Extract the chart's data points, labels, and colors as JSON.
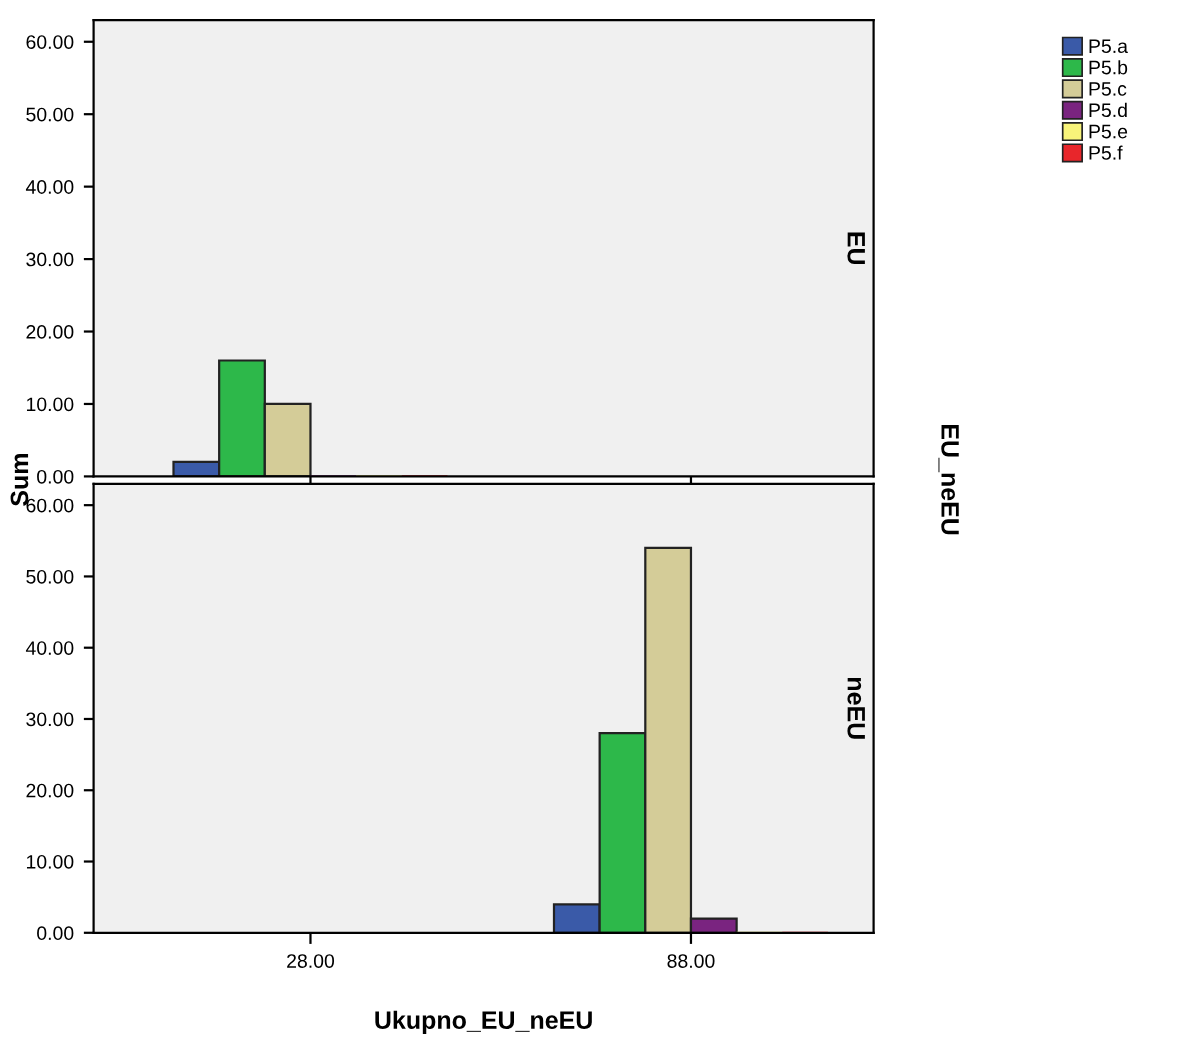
{
  "chart_data": [
    {
      "type": "bar",
      "title": "EU",
      "ylabel": "Sum",
      "annotations": [
        "EU_neEU"
      ],
      "categories": [
        "28.00",
        "88.00"
      ],
      "ylim": [
        0,
        63
      ],
      "yticks": [
        {
          "value": 0,
          "label": "0.00"
        },
        {
          "value": 10,
          "label": "10.00"
        },
        {
          "value": 20,
          "label": "20.00"
        },
        {
          "value": 30,
          "label": "30.00"
        },
        {
          "value": 40,
          "label": "40.00"
        },
        {
          "value": 50,
          "label": "50.00"
        },
        {
          "value": 60,
          "label": "60.00"
        }
      ],
      "tick_labels": "y",
      "grid": false,
      "legend": "top right",
      "series": [
        {
          "name": "P5.a",
          "color": "#3a5aa8",
          "values": [
            2,
            null
          ]
        },
        {
          "name": "P5.b",
          "color": "#2db84a",
          "values": [
            16,
            null
          ]
        },
        {
          "name": "P5.c",
          "color": "#d4cc98",
          "values": [
            10,
            null
          ]
        },
        {
          "name": "P5.d",
          "color": "#7a2480",
          "values": [
            0,
            null
          ]
        },
        {
          "name": "P5.e",
          "color": "#f8f47a",
          "values": [
            0,
            null
          ]
        },
        {
          "name": "P5.f",
          "color": "#e8262b",
          "values": [
            0,
            null
          ]
        }
      ]
    },
    {
      "type": "bar",
      "title": "neEU",
      "xlabel": "Ukupno_EU_neEU",
      "categories": [
        "28.00",
        "88.00"
      ],
      "ylim": [
        0,
        63
      ],
      "yticks": [
        {
          "value": 0,
          "label": "0.00"
        },
        {
          "value": 10,
          "label": "10.00"
        },
        {
          "value": 20,
          "label": "20.00"
        },
        {
          "value": 30,
          "label": "30.00"
        },
        {
          "value": 40,
          "label": "40.00"
        },
        {
          "value": 50,
          "label": "50.00"
        },
        {
          "value": 60,
          "label": "60.00"
        }
      ],
      "grid": false,
      "series": [
        {
          "color": "#3a5aa8",
          "values": [
            null,
            4
          ]
        },
        {
          "color": "#2db84a",
          "values": [
            null,
            28
          ]
        },
        {
          "color": "#d4cc98",
          "values": [
            null,
            54
          ]
        },
        {
          "color": "#7a2480",
          "values": [
            null,
            2
          ]
        },
        {
          "color": "#f8f47a",
          "values": [
            null,
            0
          ]
        },
        {
          "color": "#e8262b",
          "values": [
            null,
            0
          ]
        }
      ]
    }
  ]
}
